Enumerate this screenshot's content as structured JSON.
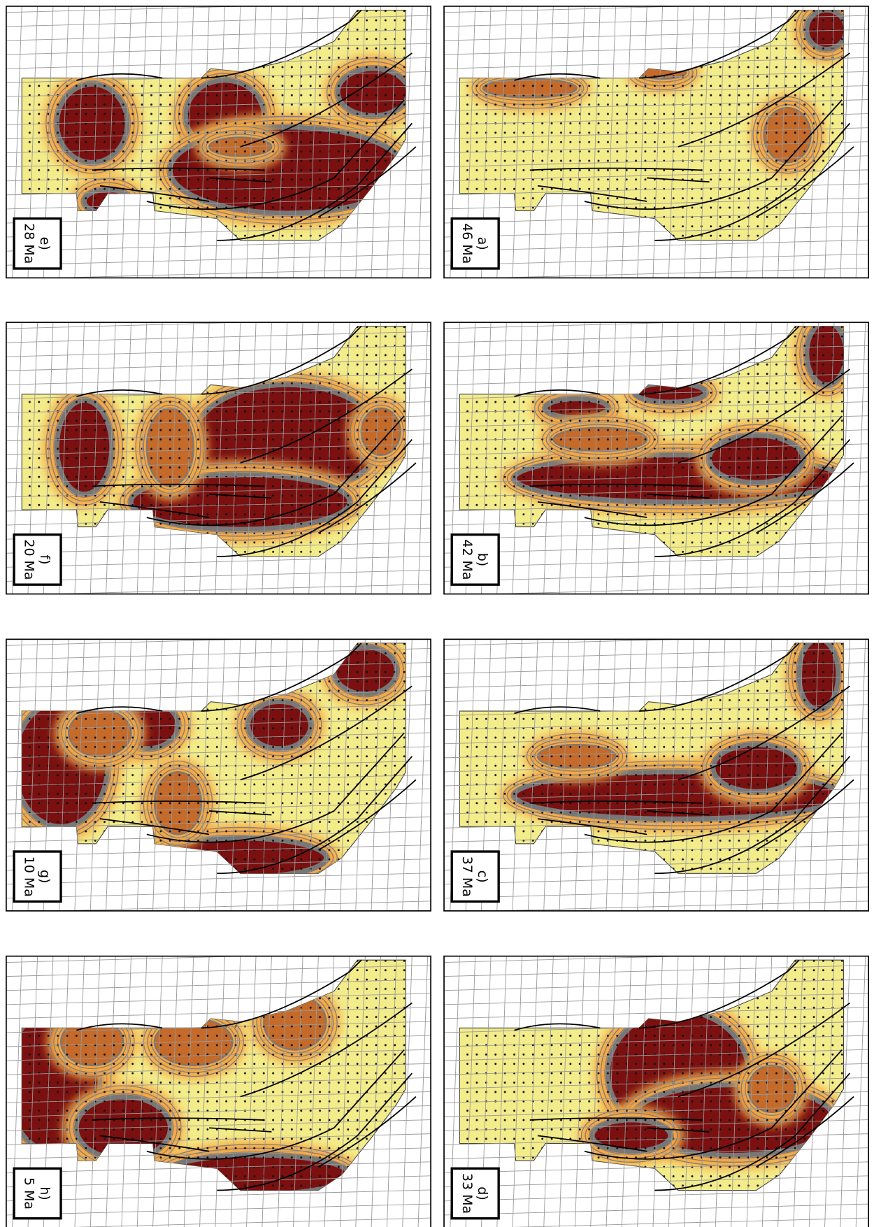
{
  "panels": [
    {
      "label": "e)",
      "age": "28 Ma"
    },
    {
      "label": "a)",
      "age": "46 Ma"
    },
    {
      "label": "f)",
      "age": "20 Ma"
    },
    {
      "label": "b)",
      "age": "42 Ma"
    },
    {
      "label": "g)",
      "age": "10 Ma"
    },
    {
      "label": "c)",
      "age": "37 Ma"
    },
    {
      "label": "h)",
      "age": "5 Ma"
    },
    {
      "label": "d)",
      "age": "33 Ma"
    }
  ]
}
